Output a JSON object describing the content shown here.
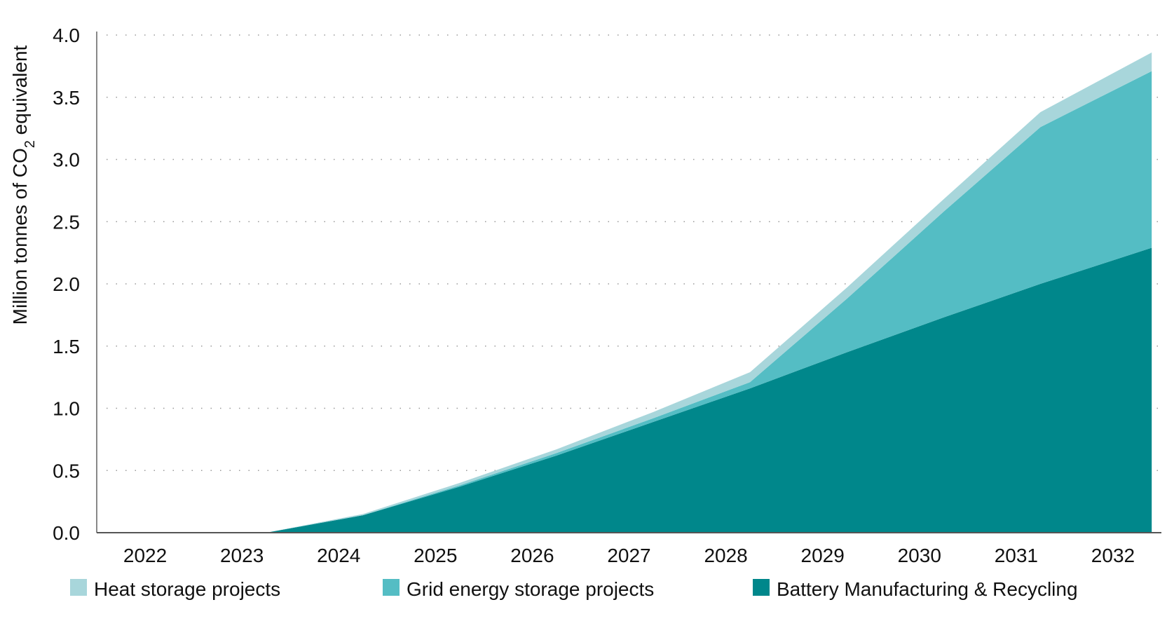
{
  "chart_data": {
    "type": "area",
    "stacked": true,
    "ylabel_prefix": "Million tonnes of CO",
    "ylabel_sub": "2",
    "ylabel_suffix": " equivalent",
    "xlabel": "",
    "ylim": [
      0,
      4.0
    ],
    "y_ticks": [
      "0.0",
      "0.5",
      "1.0",
      "1.5",
      "2.0",
      "2.5",
      "3.0",
      "3.5",
      "4.0"
    ],
    "x_ticks": [
      "2022",
      "2023",
      "2024",
      "2025",
      "2026",
      "2027",
      "2028",
      "2029",
      "2030",
      "2031",
      "2032"
    ],
    "grid": "horizontal-dotted",
    "x": [
      2022,
      2023.25,
      2024.25,
      2025.25,
      2026.25,
      2027.25,
      2028.25,
      2029.25,
      2030.25,
      2031.25,
      2032.4
    ],
    "series": [
      {
        "name": "Battery Manufacturing & Recycling",
        "color": "#00878b",
        "values": [
          0.0,
          0.0,
          0.14,
          0.37,
          0.62,
          0.89,
          1.16,
          1.45,
          1.73,
          2.0,
          2.29
        ]
      },
      {
        "name": "Grid energy storage projects",
        "color": "#54bdc4",
        "values": [
          0.0,
          0.0,
          0.0,
          0.01,
          0.02,
          0.03,
          0.05,
          0.43,
          0.85,
          1.26,
          1.42
        ]
      },
      {
        "name": "Heat storage projects",
        "color": "#a8d6db",
        "values": [
          0.0,
          0.0,
          0.01,
          0.02,
          0.03,
          0.05,
          0.08,
          0.09,
          0.1,
          0.12,
          0.15
        ]
      }
    ],
    "legend": {
      "placement": "bottom",
      "items": [
        {
          "label": "Heat storage projects",
          "color": "#a8d6db"
        },
        {
          "label": "Grid energy storage projects",
          "color": "#54bdc4"
        },
        {
          "label": "Battery Manufacturing & Recycling",
          "color": "#00878b"
        }
      ]
    }
  }
}
